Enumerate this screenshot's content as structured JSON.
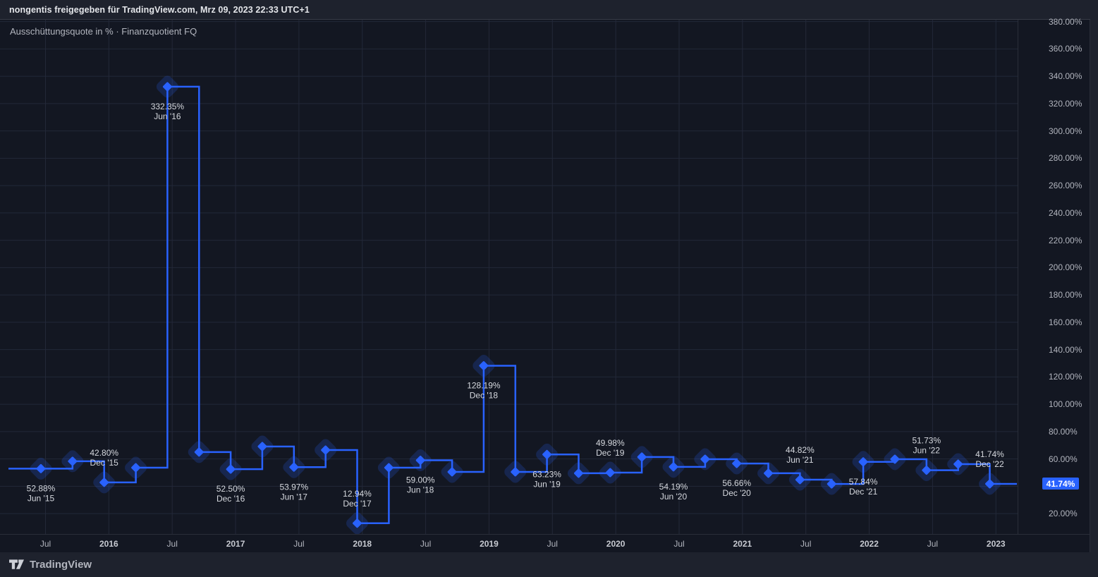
{
  "header": {
    "attribution": "nongentis freigegeben für TradingView.com, Mrz 09, 2023 22:33 UTC+1"
  },
  "pane": {
    "title": "Ausschüttungsquote in % · Finanzquotient FQ"
  },
  "colors": {
    "background": "#131722",
    "chrome": "#1e222d",
    "grid": "#232838",
    "accent": "#2962ff",
    "marker_glow": "rgba(41,98,255,0.2)",
    "axis_text": "#b2b5be",
    "point_label_text": "#d5d8de",
    "badge_background": "#2962ff",
    "badge_text": "#ffffff"
  },
  "y_axis": {
    "unit": "%",
    "max": 380,
    "min": 20,
    "step": 20,
    "labels": [
      "380.00%",
      "360.00%",
      "340.00%",
      "320.00%",
      "300.00%",
      "280.00%",
      "260.00%",
      "240.00%",
      "220.00%",
      "200.00%",
      "180.00%",
      "160.00%",
      "140.00%",
      "120.00%",
      "100.00%",
      "80.00%",
      "60.00%",
      "40.00%",
      "20.00%"
    ],
    "last_value_badge": {
      "text": "41.74%",
      "value": 41.74
    }
  },
  "x_axis": {
    "ticks": [
      "Jul",
      "2016",
      "Jul",
      "2017",
      "Jul",
      "2018",
      "Jul",
      "2019",
      "Jul",
      "2020",
      "Jul",
      "2021",
      "Jul",
      "2022",
      "Jul",
      "2023"
    ]
  },
  "chart_data": {
    "type": "line",
    "style": "step-line-with-diamond-markers",
    "title": "Ausschüttungsquote in % · Finanzquotient FQ",
    "ylabel": "Ausschüttungsquote in %",
    "ylim": [
      20,
      380
    ],
    "grid": true,
    "legend_position": "none",
    "points": [
      {
        "date": "Jun '15",
        "value": 52.88,
        "label": "52.88%",
        "label_pos": "below"
      },
      {
        "date": "Sep '15",
        "value": 58.3,
        "estimated": true
      },
      {
        "date": "Dec '15",
        "value": 42.8,
        "label": "42.80%",
        "label_pos": "above"
      },
      {
        "date": "Mar '16",
        "value": 53.6,
        "estimated": true
      },
      {
        "date": "Jun '16",
        "value": 332.35,
        "label": "332.35%",
        "label_pos": "below"
      },
      {
        "date": "Sep '16",
        "value": 65.0,
        "estimated": true
      },
      {
        "date": "Dec '16",
        "value": 52.5,
        "label": "52.50%",
        "label_pos": "below"
      },
      {
        "date": "Mar '17",
        "value": 69.1,
        "estimated": true
      },
      {
        "date": "Jun '17",
        "value": 53.97,
        "label": "53.97%",
        "label_pos": "below"
      },
      {
        "date": "Sep '17",
        "value": 66.5,
        "estimated": true
      },
      {
        "date": "Dec '17",
        "value": 12.94,
        "label": "12.94%",
        "label_pos": "above"
      },
      {
        "date": "Mar '18",
        "value": 53.6,
        "estimated": true
      },
      {
        "date": "Jun '18",
        "value": 59.0,
        "label": "59.00%",
        "label_pos": "below"
      },
      {
        "date": "Sep '18",
        "value": 50.5,
        "estimated": true
      },
      {
        "date": "Dec '18",
        "value": 128.19,
        "label": "128.19%",
        "label_pos": "below"
      },
      {
        "date": "Mar '19",
        "value": 50.5,
        "estimated": true
      },
      {
        "date": "Jun '19",
        "value": 63.23,
        "label": "63.23%",
        "label_pos": "below"
      },
      {
        "date": "Sep '19",
        "value": 49.5,
        "estimated": true
      },
      {
        "date": "Dec '19",
        "value": 49.98,
        "label": "49.98%",
        "label_pos": "above"
      },
      {
        "date": "Mar '20",
        "value": 61.4,
        "estimated": true
      },
      {
        "date": "Jun '20",
        "value": 54.19,
        "label": "54.19%",
        "label_pos": "below"
      },
      {
        "date": "Sep '20",
        "value": 59.8,
        "estimated": true
      },
      {
        "date": "Dec '20",
        "value": 56.66,
        "label": "56.66%",
        "label_pos": "below"
      },
      {
        "date": "Mar '21",
        "value": 49.5,
        "estimated": true
      },
      {
        "date": "Jun '21",
        "value": 44.82,
        "label": "44.82%",
        "label_pos": "above"
      },
      {
        "date": "Sep '21",
        "value": 41.7,
        "estimated": true
      },
      {
        "date": "Dec '21",
        "value": 57.84,
        "label": "57.84%",
        "label_pos": "below"
      },
      {
        "date": "Mar '22",
        "value": 59.8,
        "estimated": true
      },
      {
        "date": "Jun '22",
        "value": 51.73,
        "label": "51.73%",
        "label_pos": "above"
      },
      {
        "date": "Sep '22",
        "value": 56.2,
        "estimated": true
      },
      {
        "date": "Dec '22",
        "value": 41.74,
        "label": "41.74%",
        "label_pos": "above"
      }
    ]
  },
  "footer": {
    "brand": "TradingView"
  }
}
